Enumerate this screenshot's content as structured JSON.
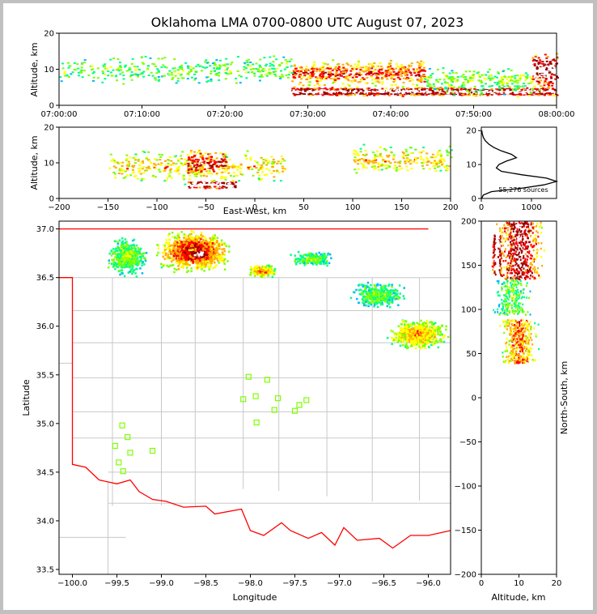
{
  "title": "Oklahoma LMA 0700-0800 UTC August 07, 2023",
  "colors": {
    "state_border": "#ff0000",
    "county_border": "#c8c8c8",
    "station_marker": "#7fff00",
    "density_scale": [
      "#0000ff",
      "#00b7ff",
      "#00ff88",
      "#7fff00",
      "#ffff00",
      "#ffaa00",
      "#ff0000",
      "#990000",
      "#ffffff"
    ]
  },
  "chart_data": [
    {
      "id": "time-height",
      "type": "heatmap",
      "ylabel": "Altitude, km",
      "ylim": [
        0,
        20
      ],
      "yticks": [
        "0",
        "10",
        "20"
      ],
      "xticks": [
        "07:00:00",
        "07:10:00",
        "07:20:00",
        "07:30:00",
        "07:40:00",
        "07:50:00",
        "08:00:00"
      ],
      "xlim_minutes": [
        0,
        60
      ],
      "clusters": [
        {
          "x_range": [
            0,
            28
          ],
          "y_center": 10,
          "y_spread": 4,
          "density": 0.25
        },
        {
          "x_range": [
            28,
            44
          ],
          "y_center": 9,
          "y_spread": 4,
          "density": 0.6
        },
        {
          "x_range": [
            28,
            60
          ],
          "y_center": 4,
          "y_spread": 1.2,
          "density": 0.9
        },
        {
          "x_range": [
            44,
            57
          ],
          "y_center": 7,
          "y_spread": 4,
          "density": 0.3
        },
        {
          "x_range": [
            57,
            60
          ],
          "y_center": 10,
          "y_spread": 5,
          "density": 0.85
        }
      ]
    },
    {
      "id": "east-west-height",
      "type": "heatmap",
      "xlabel": "East-West, km",
      "ylabel": "Altitude, km",
      "xlim": [
        -200,
        200
      ],
      "ylim": [
        0,
        20
      ],
      "xticks": [
        "−200",
        "−150",
        "−100",
        "−50",
        "0",
        "50",
        "100",
        "150",
        "200"
      ],
      "yticks": [
        "0",
        "10",
        "20"
      ],
      "clusters": [
        {
          "x_range": [
            -150,
            30
          ],
          "y_center": 9,
          "y_spread": 5,
          "density": 0.45
        },
        {
          "x_range": [
            -70,
            -30
          ],
          "y_center": 10,
          "y_spread": 4,
          "density": 0.7
        },
        {
          "x_range": [
            -70,
            -20
          ],
          "y_center": 4,
          "y_spread": 1,
          "density": 0.95
        },
        {
          "x_range": [
            100,
            200
          ],
          "y_center": 11,
          "y_spread": 4,
          "density": 0.45
        }
      ]
    },
    {
      "id": "altitude-histogram",
      "type": "line",
      "xlim": [
        0,
        1500
      ],
      "ylim": [
        0,
        21
      ],
      "xticks": [
        "0",
        "1000"
      ],
      "yticks": [
        "0",
        "10",
        "20"
      ],
      "annotation": "55,276 sources",
      "x": [
        5,
        40,
        200,
        800,
        1250,
        1500,
        1300,
        800,
        400,
        300,
        350,
        500,
        700,
        600,
        400,
        250,
        150,
        80,
        40,
        20,
        10
      ],
      "y": [
        0,
        1,
        2,
        3,
        4,
        5,
        6,
        7,
        8,
        9,
        10,
        11,
        12,
        13,
        14,
        15,
        16,
        17,
        18,
        19,
        20
      ]
    },
    {
      "id": "plan-view",
      "type": "heatmap",
      "xlabel": "Longitude",
      "ylabel": "Latitude",
      "xlim": [
        -100.15,
        -95.75
      ],
      "ylim": [
        33.45,
        37.08
      ],
      "xticks": [
        "−100.0",
        "−99.5",
        "−99.0",
        "−98.5",
        "−98.0",
        "−97.5",
        "−97.0",
        "−96.5",
        "−96.0"
      ],
      "yticks": [
        "33.5",
        "34.0",
        "34.5",
        "35.0",
        "35.5",
        "36.0",
        "36.5",
        "37.0"
      ],
      "stations": [
        [
          -99.44,
          34.98
        ],
        [
          -99.38,
          34.86
        ],
        [
          -99.52,
          34.77
        ],
        [
          -99.35,
          34.7
        ],
        [
          -99.48,
          34.6
        ],
        [
          -99.43,
          34.51
        ],
        [
          -99.1,
          34.72
        ],
        [
          -98.02,
          35.48
        ],
        [
          -97.81,
          35.45
        ],
        [
          -98.08,
          35.25
        ],
        [
          -97.94,
          35.28
        ],
        [
          -97.69,
          35.26
        ],
        [
          -97.73,
          35.14
        ],
        [
          -97.93,
          35.01
        ],
        [
          -97.5,
          35.13
        ],
        [
          -97.45,
          35.19
        ],
        [
          -97.37,
          35.24
        ]
      ],
      "clusters": [
        {
          "lon": [
            -99.65,
            -99.15
          ],
          "lat": [
            36.5,
            36.95
          ],
          "density": 0.35
        },
        {
          "lon": [
            -99.1,
            -98.2
          ],
          "lat": [
            36.55,
            37.0
          ],
          "density": 0.75
        },
        {
          "lon": [
            -98.72,
            -98.45
          ],
          "lat": [
            36.68,
            36.82
          ],
          "density": 1.0
        },
        {
          "lon": [
            -98.05,
            -97.7
          ],
          "lat": [
            36.5,
            36.65
          ],
          "density": 0.6
        },
        {
          "lon": [
            -97.6,
            -97.0
          ],
          "lat": [
            36.62,
            36.78
          ],
          "density": 0.3
        },
        {
          "lon": [
            -96.9,
            -96.25
          ],
          "lat": [
            36.18,
            36.48
          ],
          "density": 0.3
        },
        {
          "lon": [
            -96.5,
            -95.75
          ],
          "lat": [
            35.75,
            36.1
          ],
          "density": 0.55
        }
      ]
    },
    {
      "id": "north-south-height",
      "type": "heatmap",
      "xlabel": "Altitude, km",
      "ylabel": "North-South, km",
      "xlim": [
        0,
        20
      ],
      "ylim": [
        -200,
        200
      ],
      "xticks": [
        "0",
        "10",
        "20"
      ],
      "yticks": [
        "−200",
        "−150",
        "−100",
        "−50",
        "0",
        "50",
        "100",
        "150",
        "200"
      ],
      "clusters": [
        {
          "y_range": [
            135,
            200
          ],
          "x_center": 10,
          "x_spread": 6,
          "density": 0.75
        },
        {
          "y_range": [
            140,
            185
          ],
          "x_center": 4,
          "x_spread": 1.2,
          "density": 1.0
        },
        {
          "y_range": [
            95,
            135
          ],
          "x_center": 8,
          "x_spread": 5,
          "density": 0.25
        },
        {
          "y_range": [
            40,
            90
          ],
          "x_center": 10,
          "x_spread": 5,
          "density": 0.55
        }
      ]
    }
  ]
}
